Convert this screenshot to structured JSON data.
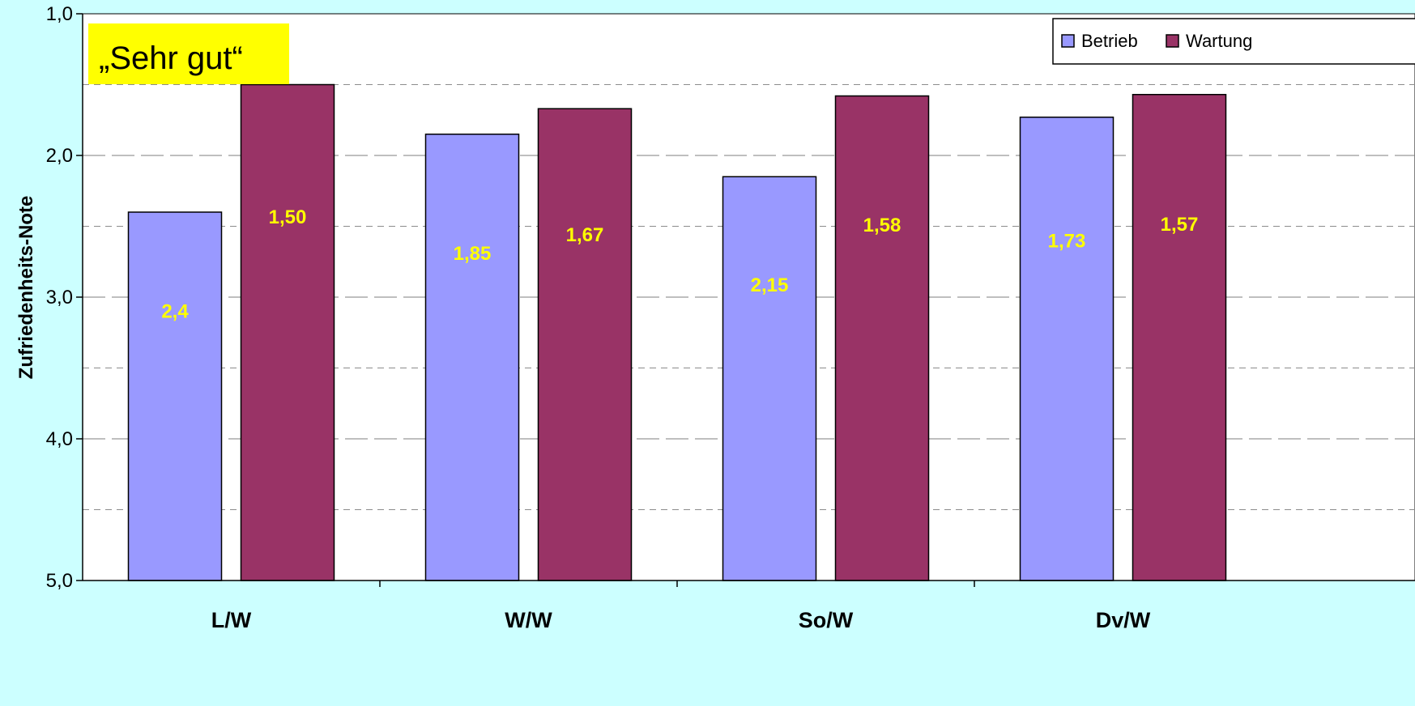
{
  "colors": {
    "background": "#ccffff",
    "plot_background": "#ffffff",
    "betrieb": "#9999ff",
    "wartung": "#993366",
    "data_label": "#ffff00",
    "callout_background": "#ffff00"
  },
  "callout": {
    "text": "„Sehr gut“"
  },
  "chart_data": {
    "type": "bar",
    "title": "",
    "xlabel": "",
    "ylabel": "Zufriedenheits-Note",
    "ylim": [
      5.0,
      1.0
    ],
    "y_axis_inverted": true,
    "y_ticks": [
      "1,0",
      "2,0",
      "3,0",
      "4,0",
      "5,0"
    ],
    "grid": true,
    "legend_position": "top-right",
    "categories": [
      "L/W",
      "W/W",
      "So/W",
      "Dv/W"
    ],
    "series": [
      {
        "name": "Betrieb",
        "values": [
          2.4,
          1.85,
          2.15,
          1.73
        ],
        "labels": [
          "2,4",
          "1,85",
          "2,15",
          "1,73"
        ]
      },
      {
        "name": "Wartung",
        "values": [
          1.5,
          1.67,
          1.58,
          1.57
        ],
        "labels": [
          "1,50",
          "1,67",
          "1,58",
          "1,57"
        ]
      }
    ]
  }
}
